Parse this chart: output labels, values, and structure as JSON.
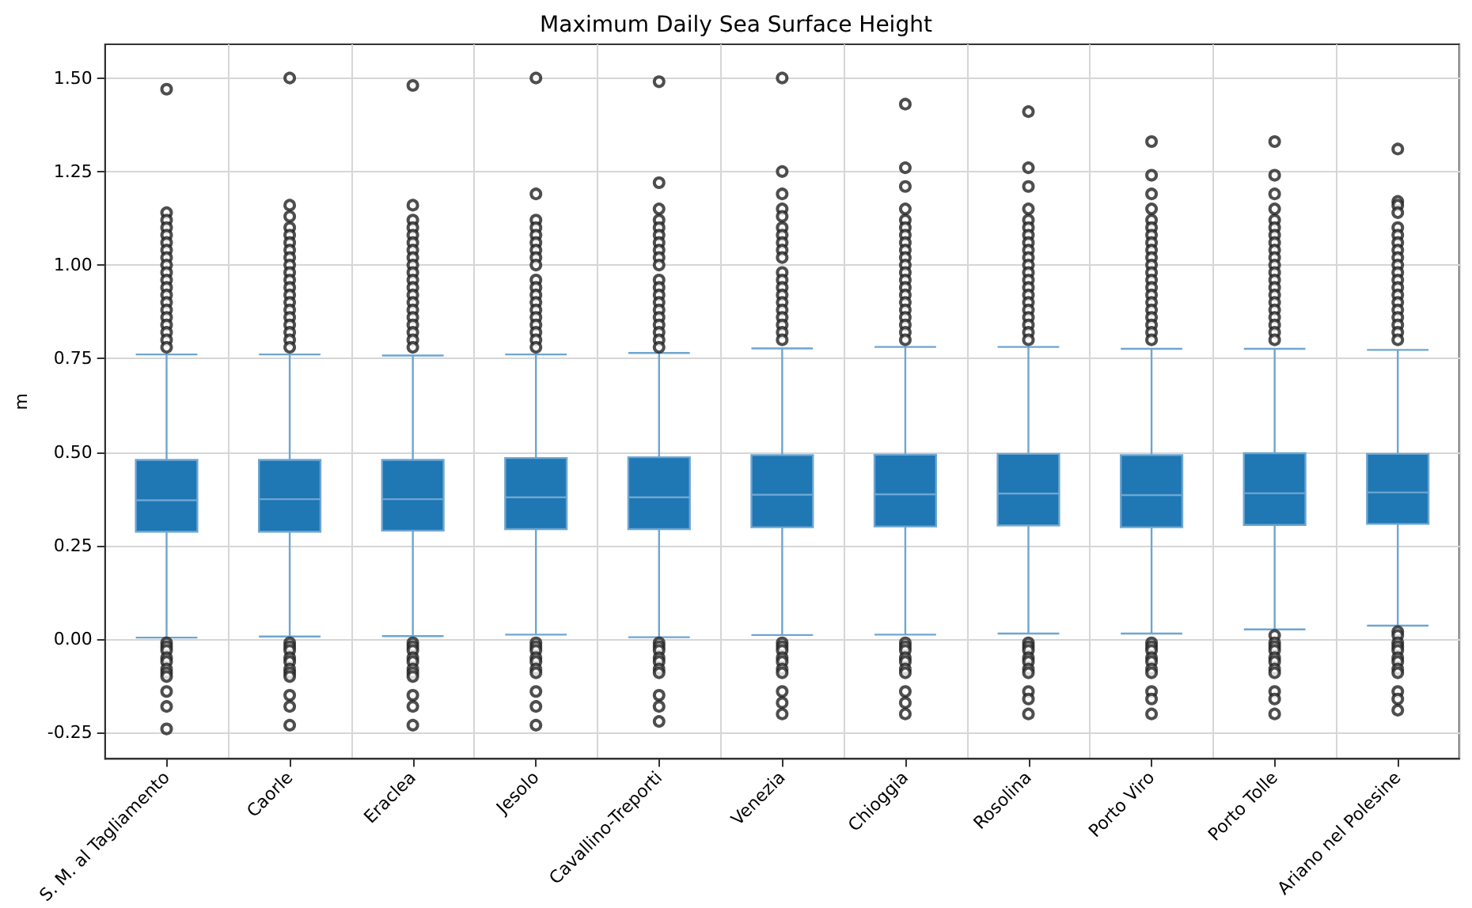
{
  "chart_data": {
    "type": "box",
    "title": "Maximum Daily Sea Surface Height",
    "ylabel": "m",
    "color": "#1f77b4",
    "grid": true,
    "categories": [
      "S. M. al Tagliamento",
      "Caorle",
      "Eraclea",
      "Jesolo",
      "Cavallino-Treporti",
      "Venezia",
      "Chioggia",
      "Rosolina",
      "Porto Viro",
      "Porto Tolle",
      "Ariano nel Polesine"
    ],
    "ylim": [
      -0.32,
      1.59
    ],
    "yticks": [
      {
        "value": -0.25,
        "label": "-0.25"
      },
      {
        "value": 0,
        "label": "0.00"
      },
      {
        "value": 0.25,
        "label": "0.25"
      },
      {
        "value": 0.5,
        "label": "0.50"
      },
      {
        "value": 0.75,
        "label": "0.75"
      },
      {
        "value": 1,
        "label": "1.00"
      },
      {
        "value": 1.25,
        "label": "1.25"
      },
      {
        "value": 1.5,
        "label": "1.50"
      }
    ],
    "boxes": [
      {
        "low": 0.004,
        "q1": 0.287,
        "median": 0.371,
        "q3": 0.479,
        "high": 0.761,
        "outliers": [
          1.47,
          1.14,
          1.12,
          1.1,
          1.08,
          1.06,
          1.04,
          1.02,
          1.0,
          0.98,
          0.96,
          0.94,
          0.92,
          0.9,
          0.88,
          0.86,
          0.84,
          0.82,
          0.8,
          0.78,
          -0.01,
          -0.02,
          -0.03,
          -0.05,
          -0.06,
          -0.08,
          -0.09,
          -0.1,
          -0.14,
          -0.18,
          -0.24
        ]
      },
      {
        "low": 0.007,
        "q1": 0.287,
        "median": 0.374,
        "q3": 0.479,
        "high": 0.761,
        "outliers": [
          1.5,
          1.16,
          1.13,
          1.1,
          1.08,
          1.06,
          1.04,
          1.02,
          1.0,
          0.98,
          0.96,
          0.94,
          0.92,
          0.9,
          0.88,
          0.86,
          0.84,
          0.82,
          0.8,
          0.78,
          -0.01,
          -0.02,
          -0.03,
          -0.05,
          -0.06,
          -0.08,
          -0.09,
          -0.1,
          -0.15,
          -0.18,
          -0.23
        ]
      },
      {
        "low": 0.008,
        "q1": 0.29,
        "median": 0.374,
        "q3": 0.479,
        "high": 0.758,
        "outliers": [
          1.48,
          1.16,
          1.12,
          1.1,
          1.08,
          1.06,
          1.04,
          1.02,
          1.0,
          0.98,
          0.96,
          0.94,
          0.92,
          0.9,
          0.88,
          0.86,
          0.84,
          0.82,
          0.8,
          0.78,
          -0.01,
          -0.02,
          -0.03,
          -0.05,
          -0.06,
          -0.08,
          -0.09,
          -0.1,
          -0.15,
          -0.18,
          -0.23
        ]
      },
      {
        "low": 0.012,
        "q1": 0.294,
        "median": 0.379,
        "q3": 0.484,
        "high": 0.761,
        "outliers": [
          1.5,
          1.19,
          1.12,
          1.1,
          1.08,
          1.06,
          1.04,
          1.02,
          1.0,
          0.96,
          0.94,
          0.92,
          0.9,
          0.88,
          0.86,
          0.84,
          0.82,
          0.8,
          0.78,
          -0.01,
          -0.02,
          -0.03,
          -0.05,
          -0.06,
          -0.08,
          -0.09,
          -0.14,
          -0.18,
          -0.23
        ]
      },
      {
        "low": 0.005,
        "q1": 0.294,
        "median": 0.379,
        "q3": 0.486,
        "high": 0.765,
        "outliers": [
          1.49,
          1.22,
          1.15,
          1.12,
          1.1,
          1.08,
          1.06,
          1.04,
          1.02,
          1.0,
          0.96,
          0.94,
          0.92,
          0.9,
          0.88,
          0.86,
          0.84,
          0.82,
          0.8,
          0.78,
          -0.01,
          -0.02,
          -0.03,
          -0.05,
          -0.06,
          -0.08,
          -0.09,
          -0.15,
          -0.18,
          -0.22
        ]
      },
      {
        "low": 0.011,
        "q1": 0.299,
        "median": 0.386,
        "q3": 0.492,
        "high": 0.777,
        "outliers": [
          1.5,
          1.25,
          1.19,
          1.15,
          1.13,
          1.1,
          1.08,
          1.06,
          1.04,
          1.02,
          0.98,
          0.96,
          0.94,
          0.92,
          0.9,
          0.88,
          0.86,
          0.84,
          0.82,
          0.8,
          -0.01,
          -0.02,
          -0.03,
          -0.05,
          -0.06,
          -0.08,
          -0.09,
          -0.14,
          -0.17,
          -0.2
        ]
      },
      {
        "low": 0.012,
        "q1": 0.301,
        "median": 0.387,
        "q3": 0.493,
        "high": 0.781,
        "outliers": [
          1.43,
          1.26,
          1.21,
          1.15,
          1.12,
          1.1,
          1.08,
          1.06,
          1.04,
          1.02,
          1.0,
          0.98,
          0.96,
          0.94,
          0.92,
          0.9,
          0.88,
          0.86,
          0.84,
          0.82,
          0.8,
          -0.01,
          -0.02,
          -0.03,
          -0.05,
          -0.06,
          -0.08,
          -0.09,
          -0.14,
          -0.17,
          -0.2
        ]
      },
      {
        "low": 0.015,
        "q1": 0.304,
        "median": 0.389,
        "q3": 0.495,
        "high": 0.781,
        "outliers": [
          1.41,
          1.26,
          1.21,
          1.15,
          1.12,
          1.1,
          1.08,
          1.06,
          1.04,
          1.02,
          1.0,
          0.98,
          0.96,
          0.94,
          0.92,
          0.9,
          0.88,
          0.86,
          0.84,
          0.82,
          0.8,
          -0.01,
          -0.02,
          -0.03,
          -0.05,
          -0.06,
          -0.08,
          -0.09,
          -0.14,
          -0.16,
          -0.2
        ]
      },
      {
        "low": 0.015,
        "q1": 0.299,
        "median": 0.385,
        "q3": 0.492,
        "high": 0.776,
        "outliers": [
          1.33,
          1.24,
          1.19,
          1.15,
          1.12,
          1.1,
          1.08,
          1.06,
          1.04,
          1.02,
          1.0,
          0.98,
          0.96,
          0.94,
          0.92,
          0.9,
          0.88,
          0.86,
          0.84,
          0.82,
          0.8,
          -0.01,
          -0.02,
          -0.03,
          -0.05,
          -0.06,
          -0.08,
          -0.09,
          -0.14,
          -0.16,
          -0.2
        ]
      },
      {
        "low": 0.026,
        "q1": 0.305,
        "median": 0.39,
        "q3": 0.497,
        "high": 0.776,
        "outliers": [
          1.33,
          1.24,
          1.19,
          1.15,
          1.12,
          1.1,
          1.08,
          1.06,
          1.04,
          1.02,
          1.0,
          0.98,
          0.96,
          0.94,
          0.92,
          0.9,
          0.88,
          0.86,
          0.84,
          0.82,
          0.8,
          0.01,
          -0.01,
          -0.02,
          -0.03,
          -0.05,
          -0.06,
          -0.08,
          -0.09,
          -0.14,
          -0.16,
          -0.2
        ]
      },
      {
        "low": 0.036,
        "q1": 0.308,
        "median": 0.392,
        "q3": 0.495,
        "high": 0.773,
        "outliers": [
          1.31,
          1.17,
          1.16,
          1.14,
          1.1,
          1.08,
          1.06,
          1.04,
          1.02,
          1.0,
          0.98,
          0.96,
          0.94,
          0.92,
          0.9,
          0.88,
          0.86,
          0.84,
          0.82,
          0.8,
          0.02,
          0.01,
          -0.01,
          -0.02,
          -0.03,
          -0.05,
          -0.06,
          -0.08,
          -0.09,
          -0.14,
          -0.16,
          -0.19
        ]
      }
    ]
  }
}
